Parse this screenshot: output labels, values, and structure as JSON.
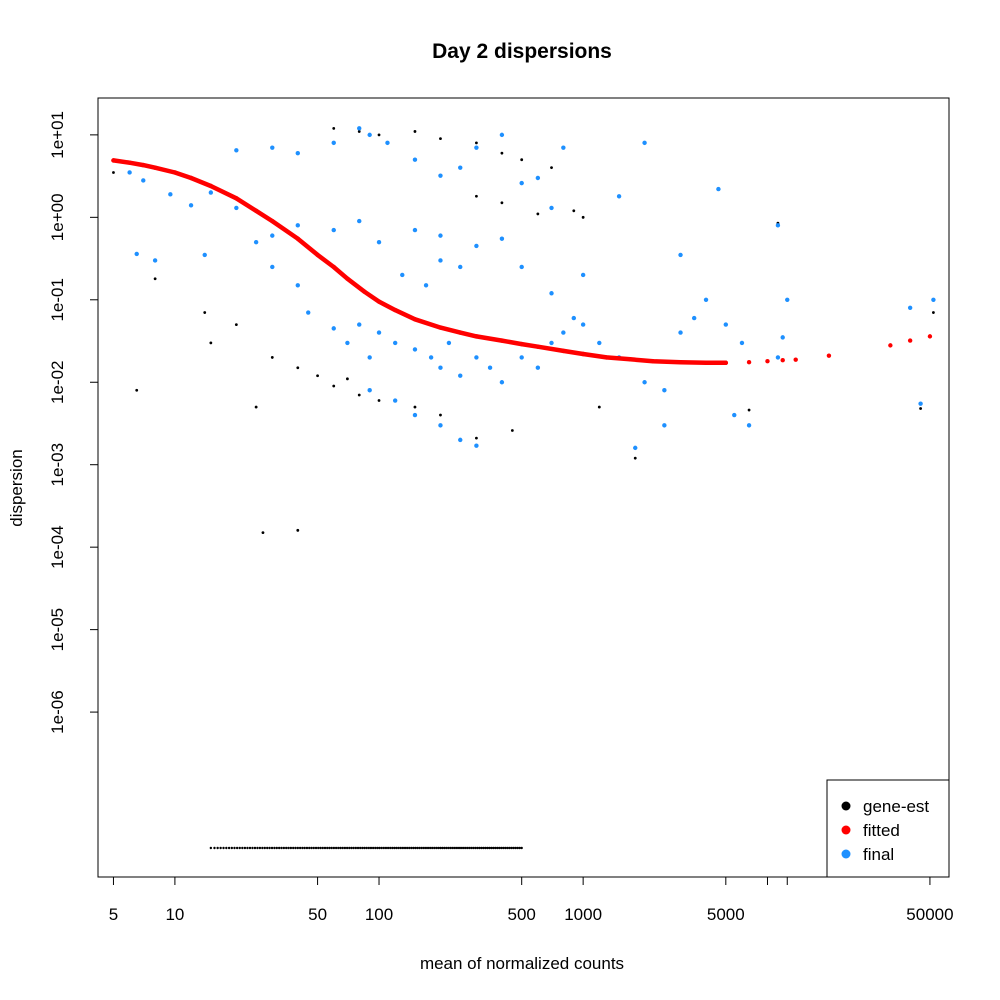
{
  "colors": {
    "gene_est": "#000000",
    "fitted": "#ff0000",
    "final": "#1e90ff"
  },
  "chart_data": {
    "type": "scatter",
    "title": "Day 2 dispersions",
    "xlabel": "mean of normalized counts",
    "ylabel": "dispersion",
    "x_scale": "log",
    "y_scale": "log",
    "xlim": [
      4.2,
      62000
    ],
    "ylim": [
      1e-08,
      28
    ],
    "x_ticks": [
      {
        "value": 5,
        "label": "5"
      },
      {
        "value": 10,
        "label": "10"
      },
      {
        "value": 50,
        "label": "50"
      },
      {
        "value": 100,
        "label": "100"
      },
      {
        "value": 500,
        "label": "500"
      },
      {
        "value": 1000,
        "label": "1000"
      },
      {
        "value": 5000,
        "label": "5000"
      },
      {
        "value": 50000,
        "label": "50000"
      }
    ],
    "x_minor_ticks": [
      8000,
      10000
    ],
    "y_ticks": [
      {
        "value": 10,
        "label": "1e+01"
      },
      {
        "value": 1,
        "label": "1e+00"
      },
      {
        "value": 0.1,
        "label": "1e-01"
      },
      {
        "value": 0.01,
        "label": "1e-02"
      },
      {
        "value": 0.001,
        "label": "1e-03"
      },
      {
        "value": 0.0001,
        "label": "1e-04"
      },
      {
        "value": 1e-05,
        "label": "1e-05"
      },
      {
        "value": 1e-06,
        "label": "1e-06"
      }
    ],
    "legend": {
      "position": "bottom-right",
      "entries": [
        "gene-est",
        "fitted",
        "final"
      ]
    },
    "series": [
      {
        "name": "fitted",
        "points": [
          [
            5,
            4.9
          ],
          [
            6,
            4.6
          ],
          [
            7,
            4.3
          ],
          [
            8,
            4.0
          ],
          [
            10,
            3.5
          ],
          [
            12,
            3.0
          ],
          [
            15,
            2.4
          ],
          [
            20,
            1.7
          ],
          [
            25,
            1.2
          ],
          [
            30,
            0.9
          ],
          [
            40,
            0.55
          ],
          [
            50,
            0.35
          ],
          [
            60,
            0.25
          ],
          [
            70,
            0.18
          ],
          [
            85,
            0.125
          ],
          [
            100,
            0.095
          ],
          [
            120,
            0.075
          ],
          [
            150,
            0.058
          ],
          [
            200,
            0.046
          ],
          [
            250,
            0.04
          ],
          [
            300,
            0.036
          ],
          [
            400,
            0.032
          ],
          [
            500,
            0.029
          ],
          [
            600,
            0.027
          ],
          [
            800,
            0.024
          ],
          [
            1000,
            0.022
          ],
          [
            1300,
            0.02
          ],
          [
            1700,
            0.019
          ],
          [
            2200,
            0.018
          ],
          [
            3000,
            0.0175
          ],
          [
            4000,
            0.0172
          ],
          [
            5000,
            0.0172
          ],
          [
            6500,
            0.0175
          ],
          [
            8000,
            0.018
          ],
          [
            9500,
            0.0185
          ],
          [
            11000,
            0.0188
          ],
          [
            16000,
            0.021
          ],
          [
            32000,
            0.028
          ],
          [
            40000,
            0.032
          ],
          [
            50000,
            0.036
          ]
        ]
      },
      {
        "name": "final",
        "points": [
          [
            9.5,
            1.9
          ],
          [
            12,
            1.4
          ],
          [
            15,
            2.0
          ],
          [
            20,
            1.3
          ],
          [
            6,
            3.5
          ],
          [
            7,
            2.8
          ],
          [
            6.5,
            0.36
          ],
          [
            8,
            0.3
          ],
          [
            14,
            0.35
          ],
          [
            25,
            0.5
          ],
          [
            30,
            0.6
          ],
          [
            40,
            0.8
          ],
          [
            60,
            0.7
          ],
          [
            80,
            0.9
          ],
          [
            100,
            0.5
          ],
          [
            150,
            0.7
          ],
          [
            200,
            0.6
          ],
          [
            300,
            0.45
          ],
          [
            400,
            0.55
          ],
          [
            130,
            0.2
          ],
          [
            170,
            0.15
          ],
          [
            200,
            0.3
          ],
          [
            250,
            0.25
          ],
          [
            30,
            0.25
          ],
          [
            40,
            0.15
          ],
          [
            45,
            0.07
          ],
          [
            60,
            0.045
          ],
          [
            70,
            0.03
          ],
          [
            80,
            0.05
          ],
          [
            90,
            0.02
          ],
          [
            100,
            0.04
          ],
          [
            120,
            0.03
          ],
          [
            150,
            0.025
          ],
          [
            180,
            0.02
          ],
          [
            200,
            0.015
          ],
          [
            220,
            0.03
          ],
          [
            250,
            0.012
          ],
          [
            300,
            0.02
          ],
          [
            350,
            0.015
          ],
          [
            400,
            0.01
          ],
          [
            500,
            0.02
          ],
          [
            600,
            0.015
          ],
          [
            700,
            0.03
          ],
          [
            800,
            0.04
          ],
          [
            900,
            0.06
          ],
          [
            1000,
            0.05
          ],
          [
            1200,
            0.03
          ],
          [
            1500,
            0.02
          ],
          [
            2000,
            0.01
          ],
          [
            2500,
            0.008
          ],
          [
            3000,
            0.04
          ],
          [
            3500,
            0.06
          ],
          [
            4000,
            0.1
          ],
          [
            5000,
            0.05
          ],
          [
            6000,
            0.03
          ],
          [
            9000,
            0.02
          ],
          [
            9500,
            0.035
          ],
          [
            10000,
            0.1
          ],
          [
            9000,
            0.8
          ],
          [
            4600,
            2.2
          ],
          [
            2000,
            8
          ],
          [
            1500,
            1.8
          ],
          [
            700,
            1.3
          ],
          [
            800,
            7
          ],
          [
            600,
            3
          ],
          [
            500,
            2.6
          ],
          [
            400,
            10
          ],
          [
            300,
            7
          ],
          [
            250,
            4
          ],
          [
            200,
            3.2
          ],
          [
            150,
            5
          ],
          [
            110,
            8
          ],
          [
            90,
            10
          ],
          [
            80,
            12
          ],
          [
            60,
            8
          ],
          [
            40,
            6
          ],
          [
            30,
            7
          ],
          [
            20,
            6.5
          ],
          [
            1800,
            0.0016
          ],
          [
            300,
            0.0017
          ],
          [
            250,
            0.002
          ],
          [
            200,
            0.003
          ],
          [
            150,
            0.004
          ],
          [
            120,
            0.006
          ],
          [
            90,
            0.008
          ],
          [
            40000,
            0.08
          ],
          [
            45000,
            0.0055
          ],
          [
            52000,
            0.1
          ],
          [
            6500,
            0.003
          ],
          [
            5500,
            0.004
          ],
          [
            2500,
            0.003
          ],
          [
            1000,
            0.2
          ],
          [
            700,
            0.12
          ],
          [
            500,
            0.25
          ],
          [
            3000,
            0.35
          ]
        ]
      },
      {
        "name": "gene-est",
        "points": [
          [
            5,
            3.5
          ],
          [
            8,
            0.18
          ],
          [
            6.5,
            0.008
          ],
          [
            14,
            0.07
          ],
          [
            15,
            0.03
          ],
          [
            20,
            0.05
          ],
          [
            25,
            0.005
          ],
          [
            30,
            0.02
          ],
          [
            40,
            0.015
          ],
          [
            50,
            0.012
          ],
          [
            60,
            0.009
          ],
          [
            70,
            0.011
          ],
          [
            80,
            0.007
          ],
          [
            100,
            0.006
          ],
          [
            150,
            0.005
          ],
          [
            200,
            0.004
          ],
          [
            300,
            0.0021
          ],
          [
            450,
            0.0026
          ],
          [
            1200,
            0.005
          ],
          [
            1800,
            0.0012
          ],
          [
            6500,
            0.0046
          ],
          [
            9000,
            0.85
          ],
          [
            45000,
            0.0048
          ],
          [
            52000,
            0.07
          ],
          [
            27,
            0.00015
          ],
          [
            40,
            0.00016
          ],
          [
            60,
            12
          ],
          [
            80,
            11
          ],
          [
            100,
            10
          ],
          [
            150,
            11
          ],
          [
            200,
            9
          ],
          [
            300,
            8
          ],
          [
            400,
            6
          ],
          [
            500,
            5
          ],
          [
            700,
            4
          ],
          [
            900,
            1.2
          ],
          [
            1000,
            1.0
          ],
          [
            600,
            1.1
          ],
          [
            400,
            1.5
          ],
          [
            300,
            1.8
          ]
        ],
        "zero_dispersion_band": {
          "x_range": [
            15,
            500
          ],
          "note": "points at the bottom of the plot"
        }
      }
    ]
  }
}
